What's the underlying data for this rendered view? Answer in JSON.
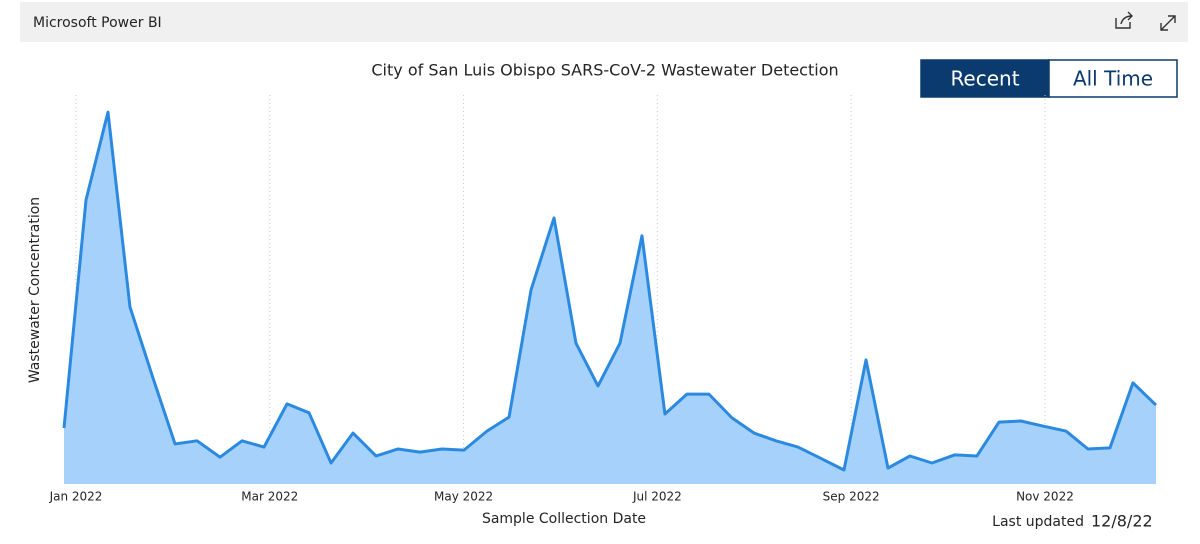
{
  "header": {
    "title": "Microsoft Power BI"
  },
  "buttons": [
    "Recent",
    "All Time"
  ],
  "selected_button": "Recent",
  "footer": {
    "label": "Last updated",
    "date": "12/8/22"
  },
  "chart_data": {
    "type": "area",
    "title": "City of San Luis Obispo SARS-CoV-2 Wastewater Detection",
    "x_label": "Sample Collection Date",
    "y_label": "Wastewater Concentration",
    "x": [
      0.876,
      1.103,
      1.33,
      1.557,
      1.795,
      2.022,
      2.249,
      2.486,
      2.713,
      2.94,
      3.178,
      3.405,
      3.632,
      3.859,
      4.096,
      4.323,
      4.55,
      4.777,
      5.004,
      5.241,
      5.469,
      5.696,
      5.933,
      6.16,
      6.387,
      6.614,
      6.841,
      7.078,
      7.305,
      7.532,
      7.77,
      7.997,
      8.224,
      8.451,
      8.678,
      8.926,
      9.153,
      9.38,
      9.607,
      9.834,
      10.071,
      10.298,
      10.525,
      10.752,
      10.979,
      11.217,
      11.444,
      11.671,
      11.908,
      12.146
    ],
    "values": [
      14.4,
      73.0,
      95.6,
      45.5,
      27.2,
      10.3,
      11.1,
      6.9,
      11.1,
      9.5,
      20.6,
      18.3,
      5.4,
      13.1,
      7.2,
      9.0,
      8.2,
      9.0,
      8.7,
      13.6,
      17.2,
      49.9,
      68.4,
      36.2,
      25.2,
      36.2,
      63.8,
      18.0,
      23.1,
      23.1,
      17.0,
      13.1,
      11.1,
      9.5,
      6.7,
      3.6,
      31.9,
      4.1,
      7.2,
      5.4,
      7.5,
      7.2,
      15.9,
      16.2,
      14.9,
      13.6,
      9.0,
      9.3,
      26.0,
      20.3
    ],
    "color": "#2b8ae0",
    "fill_color": "#a5d1fa",
    "xlim": [
      0.876,
      12.146
    ],
    "ylim": [
      0,
      100
    ],
    "xticks": [
      {
        "value": 1,
        "label": "Jan 2022"
      },
      {
        "value": 3,
        "label": "Mar 2022"
      },
      {
        "value": 5,
        "label": "May 2022"
      },
      {
        "value": 7,
        "label": "Jul 2022"
      },
      {
        "value": 9,
        "label": "Sep 2022"
      },
      {
        "value": 11,
        "label": "Nov 2022"
      }
    ],
    "grid": true
  }
}
